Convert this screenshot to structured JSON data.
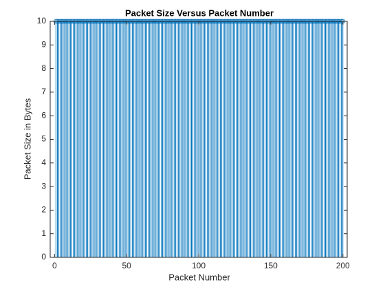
{
  "chart_data": {
    "type": "stem",
    "title": "Packet Size Versus Packet Number",
    "xlabel": "Packet Number",
    "ylabel": "Packet Size in Bytes",
    "x": [
      1,
      2,
      3,
      4,
      5,
      6,
      7,
      8,
      9,
      10,
      11,
      12,
      13,
      14,
      15,
      16,
      17,
      18,
      19,
      20,
      21,
      22,
      23,
      24,
      25,
      26,
      27,
      28,
      29,
      30,
      31,
      32,
      33,
      34,
      35,
      36,
      37,
      38,
      39,
      40,
      41,
      42,
      43,
      44,
      45,
      46,
      47,
      48,
      49,
      50,
      51,
      52,
      53,
      54,
      55,
      56,
      57,
      58,
      59,
      60,
      61,
      62,
      63,
      64,
      65,
      66,
      67,
      68,
      69,
      70,
      71,
      72,
      73,
      74,
      75,
      76,
      77,
      78,
      79,
      80,
      81,
      82,
      83,
      84,
      85,
      86,
      87,
      88,
      89,
      90,
      91,
      92,
      93,
      94,
      95,
      96,
      97,
      98,
      99,
      100,
      101,
      102,
      103,
      104,
      105,
      106,
      107,
      108,
      109,
      110,
      111,
      112,
      113,
      114,
      115,
      116,
      117,
      118,
      119,
      120,
      121,
      122,
      123,
      124,
      125,
      126,
      127,
      128,
      129,
      130,
      131,
      132,
      133,
      134,
      135,
      136,
      137,
      138,
      139,
      140,
      141,
      142,
      143,
      144,
      145,
      146,
      147,
      148,
      149,
      150,
      151,
      152,
      153,
      154,
      155,
      156,
      157,
      158,
      159,
      160,
      161,
      162,
      163,
      164,
      165,
      166,
      167,
      168,
      169,
      170,
      171,
      172,
      173,
      174,
      175,
      176,
      177,
      178,
      179,
      180,
      181,
      182,
      183,
      184,
      185,
      186,
      187,
      188,
      189,
      190,
      191,
      192,
      193,
      194,
      195,
      196,
      197,
      198,
      199,
      200
    ],
    "values": [
      10,
      10,
      10,
      10,
      10,
      10,
      10,
      10,
      10,
      10,
      10,
      10,
      10,
      10,
      10,
      10,
      10,
      10,
      10,
      10,
      10,
      10,
      10,
      10,
      10,
      10,
      10,
      10,
      10,
      10,
      10,
      10,
      10,
      10,
      10,
      10,
      10,
      10,
      10,
      10,
      10,
      10,
      10,
      10,
      10,
      10,
      10,
      10,
      10,
      10,
      10,
      10,
      10,
      10,
      10,
      10,
      10,
      10,
      10,
      10,
      10,
      10,
      10,
      10,
      10,
      10,
      10,
      10,
      10,
      10,
      10,
      10,
      10,
      10,
      10,
      10,
      10,
      10,
      10,
      10,
      10,
      10,
      10,
      10,
      10,
      10,
      10,
      10,
      10,
      10,
      10,
      10,
      10,
      10,
      10,
      10,
      10,
      10,
      10,
      10,
      10,
      10,
      10,
      10,
      10,
      10,
      10,
      10,
      10,
      10,
      10,
      10,
      10,
      10,
      10,
      10,
      10,
      10,
      10,
      10,
      10,
      10,
      10,
      10,
      10,
      10,
      10,
      10,
      10,
      10,
      10,
      10,
      10,
      10,
      10,
      10,
      10,
      10,
      10,
      10,
      10,
      10,
      10,
      10,
      10,
      10,
      10,
      10,
      10,
      10,
      10,
      10,
      10,
      10,
      10,
      10,
      10,
      10,
      10,
      10,
      10,
      10,
      10,
      10,
      10,
      10,
      10,
      10,
      10,
      10,
      10,
      10,
      10,
      10,
      10,
      10,
      10,
      10,
      10,
      10,
      10,
      10,
      10,
      10,
      10,
      10,
      10,
      10,
      10,
      10,
      10,
      10,
      10,
      10,
      10,
      10,
      10,
      10,
      10,
      10
    ],
    "color": "#0072bd",
    "xlim": [
      -3,
      203
    ],
    "xticks": [
      0,
      50,
      100,
      150,
      200
    ],
    "ylim": [
      0,
      10
    ],
    "yticks": [
      0,
      1,
      2,
      3,
      4,
      5,
      6,
      7,
      8,
      9,
      10
    ]
  }
}
